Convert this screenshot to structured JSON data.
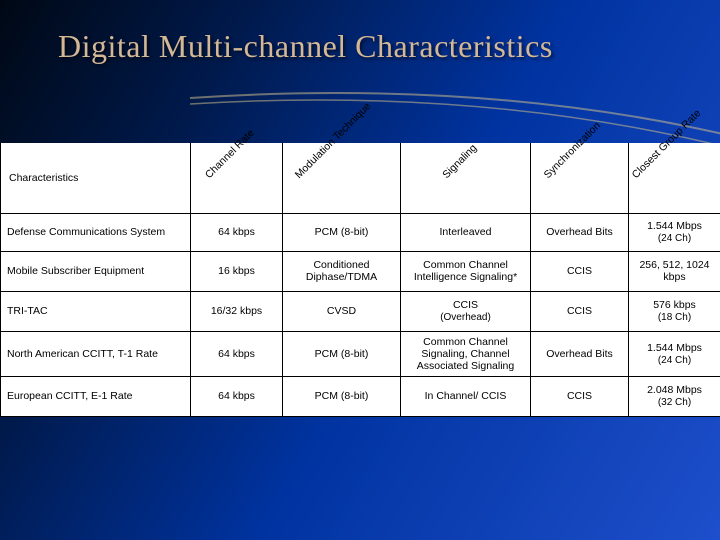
{
  "title": "Digital Multi-channel Characteristics",
  "table": {
    "columns": [
      "Characteristics",
      "Channel Rate",
      "Modulation Technique",
      "Signaling",
      "Synchronization",
      "Closest Group Rate"
    ],
    "rows": [
      {
        "label": "Defense Communications System",
        "cells": [
          "64 kbps",
          "PCM (8-bit)",
          "Interleaved",
          "Overhead Bits",
          "1.544 Mbps\n(24 Ch)"
        ]
      },
      {
        "label": "Mobile Subscriber Equipment",
        "cells": [
          "16 kbps",
          "Conditioned Diphase/TDMA",
          "Common Channel Intelligence Signaling*",
          "CCIS",
          "256, 512, 1024 kbps"
        ]
      },
      {
        "label": "TRI-TAC",
        "cells": [
          "16/32 kbps",
          "CVSD",
          "CCIS\n(Overhead)",
          "CCIS",
          "576 kbps\n(18 Ch)"
        ]
      },
      {
        "label": "North American CCITT, T-1 Rate",
        "cells": [
          "64 kbps",
          "PCM (8-bit)",
          "Common Channel Signaling, Channel Associated Signaling",
          "Overhead Bits",
          "1.544 Mbps\n(24 Ch)"
        ]
      },
      {
        "label": "European CCITT, E-1 Rate",
        "cells": [
          "64 kbps",
          "PCM (8-bit)",
          "In Channel/ CCIS",
          "CCIS",
          "2.048 Mbps\n(32 Ch)"
        ]
      }
    ]
  }
}
